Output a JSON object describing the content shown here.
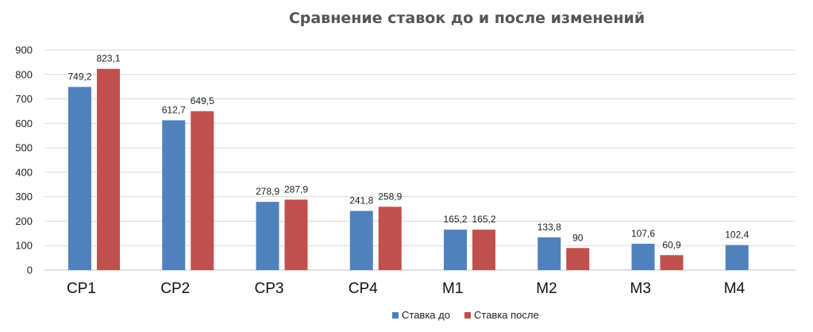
{
  "chart_data": {
    "type": "bar",
    "title": "Сравнение ставок до и после изменений",
    "xlabel": "",
    "ylabel": "",
    "ylim": [
      0,
      900
    ],
    "yticks": [
      0,
      100,
      200,
      300,
      400,
      500,
      600,
      700,
      800,
      900
    ],
    "ytick_labels": [
      "0",
      "100",
      "200",
      "300",
      "400",
      "500",
      "600",
      "700",
      "800",
      "900"
    ],
    "grid": true,
    "legend_position": "bottom",
    "categories": [
      "CP1",
      "CP2",
      "CP3",
      "CP4",
      "M1",
      "M2",
      "M3",
      "M4"
    ],
    "series": [
      {
        "name": "Ставка до",
        "color": "#4f81bd",
        "values": [
          749.2,
          612.7,
          278.9,
          241.8,
          165.2,
          133.8,
          107.6,
          102.4
        ],
        "labels": [
          "749,2",
          "612,7",
          "278,9",
          "241,8",
          "165,2",
          "133,8",
          "107,6",
          "102,4"
        ]
      },
      {
        "name": "Ставка после",
        "color": "#c0504d",
        "values": [
          823.1,
          649.5,
          287.9,
          258.9,
          165.2,
          90,
          60.9,
          null
        ],
        "labels": [
          "823,1",
          "649,5",
          "287,9",
          "258,9",
          "165,2",
          "90",
          "60,9",
          ""
        ]
      }
    ]
  }
}
